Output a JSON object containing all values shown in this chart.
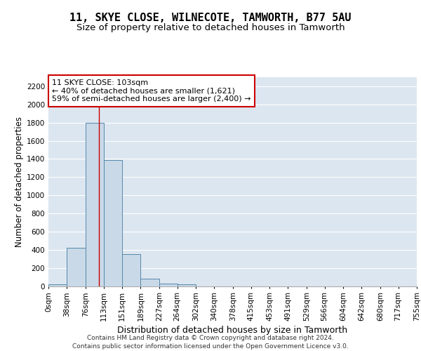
{
  "title1": "11, SKYE CLOSE, WILNECOTE, TAMWORTH, B77 5AU",
  "title2": "Size of property relative to detached houses in Tamworth",
  "xlabel": "Distribution of detached houses by size in Tamworth",
  "ylabel": "Number of detached properties",
  "bin_edges": [
    0,
    38,
    76,
    113,
    151,
    189,
    227,
    264,
    302,
    340,
    378,
    415,
    453,
    491,
    529,
    566,
    604,
    642,
    680,
    717,
    755
  ],
  "bin_labels": [
    "0sqm",
    "38sqm",
    "76sqm",
    "113sqm",
    "151sqm",
    "189sqm",
    "227sqm",
    "264sqm",
    "302sqm",
    "340sqm",
    "378sqm",
    "415sqm",
    "453sqm",
    "491sqm",
    "529sqm",
    "566sqm",
    "604sqm",
    "642sqm",
    "680sqm",
    "717sqm",
    "755sqm"
  ],
  "bar_heights": [
    20,
    420,
    1800,
    1390,
    350,
    80,
    30,
    20,
    0,
    0,
    0,
    0,
    0,
    0,
    0,
    0,
    0,
    0,
    0,
    0
  ],
  "bar_color": "#c9d9e8",
  "bar_edge_color": "#5588aa",
  "background_color": "#dce6f0",
  "grid_color": "#ffffff",
  "property_line_x": 103,
  "property_line_color": "#cc0000",
  "annotation_line1": "11 SKYE CLOSE: 103sqm",
  "annotation_line2": "← 40% of detached houses are smaller (1,621)",
  "annotation_line3": "59% of semi-detached houses are larger (2,400) →",
  "annotation_box_color": "#ffffff",
  "annotation_box_edge": "#cc0000",
  "ylim": [
    0,
    2300
  ],
  "yticks": [
    0,
    200,
    400,
    600,
    800,
    1000,
    1200,
    1400,
    1600,
    1800,
    2000,
    2200
  ],
  "footer_line1": "Contains HM Land Registry data © Crown copyright and database right 2024.",
  "footer_line2": "Contains public sector information licensed under the Open Government Licence v3.0.",
  "title1_fontsize": 11,
  "title2_fontsize": 9.5,
  "xlabel_fontsize": 9,
  "ylabel_fontsize": 8.5,
  "tick_fontsize": 7.5,
  "annotation_fontsize": 8,
  "footer_fontsize": 6.5
}
